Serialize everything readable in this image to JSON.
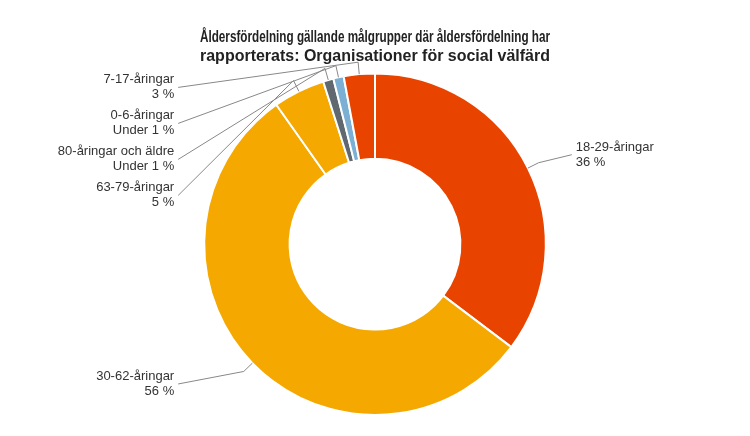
{
  "chart_data": {
    "type": "doughnut",
    "title": "Åldersfördelning gällande målgrupper där åldersfördelning har\nrapporterats: Organisationer för social välfärd",
    "categories": [
      "18-29-åringar\n36 %",
      "30-62-åringar\n56 %",
      "63-79-åringar\n5 %",
      "80-åringar och äldre\nUnder 1 %",
      "0-6-åringar\nUnder 1 %",
      "7-17-åringar\n3 %"
    ],
    "values": [
      36,
      56,
      5,
      1.0,
      1.0,
      3
    ],
    "colors": [
      "#E84400",
      "#F5A800",
      "#F5A800",
      "#606870",
      "#7BAFD4",
      "#E84400"
    ]
  }
}
